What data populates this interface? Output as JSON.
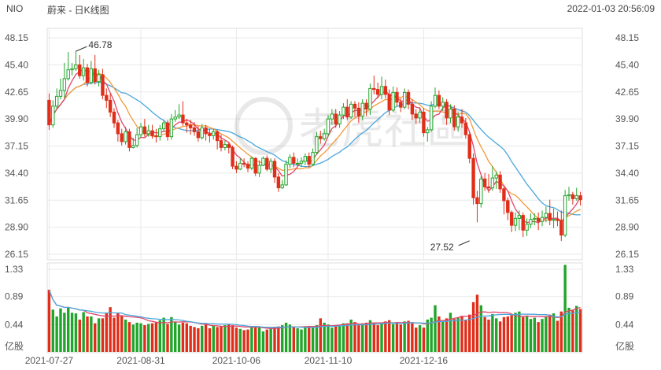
{
  "header": {
    "symbol": "NIO",
    "name": "蔚来 - 日K线图",
    "datetime": "2022-01-03 20:56:09"
  },
  "watermark": "老虎社區",
  "colors": {
    "up": "#22a52b",
    "down": "#e02e1a",
    "ma_red": "#e0456a",
    "ma_orange": "#f39a3a",
    "ma_blue": "#4aa7dd",
    "grid": "#e9e9e9",
    "axis_text": "#555555"
  },
  "chart_data": {
    "type": "candlestick",
    "price_axis": {
      "ticks": [
        "48.15",
        "45.40",
        "42.65",
        "39.90",
        "37.15",
        "34.40",
        "31.65",
        "28.90",
        "26.15"
      ],
      "range": [
        26.15,
        48.15
      ]
    },
    "volume_axis": {
      "ticks": [
        "1.33",
        "0.89",
        "0.44"
      ],
      "range": [
        0,
        1.33
      ],
      "unit": "亿股"
    },
    "x_labels": [
      "2021-07-27",
      "2021-08-31",
      "2021-10-06",
      "2021-11-10",
      "2021-12-16"
    ],
    "x_label_positions": [
      0,
      24,
      49,
      73,
      98
    ],
    "annotations": [
      {
        "text": "46.78",
        "index": 7,
        "value": 46.78,
        "kind": "high"
      },
      {
        "text": "27.52",
        "index": 110,
        "value": 27.52,
        "kind": "low"
      }
    ],
    "candles": [
      [
        41.8,
        39.3,
        42.5,
        38.8
      ],
      [
        39.3,
        41.2,
        41.8,
        39.0
      ],
      [
        41.2,
        42.2,
        43.0,
        40.9
      ],
      [
        42.2,
        42.8,
        44.0,
        41.9
      ],
      [
        42.8,
        44.0,
        45.6,
        42.0
      ],
      [
        44.0,
        44.9,
        46.7,
        43.8
      ],
      [
        44.9,
        45.0,
        45.6,
        44.3
      ],
      [
        45.0,
        45.4,
        46.8,
        44.8
      ],
      [
        45.4,
        44.3,
        46.4,
        44.0
      ],
      [
        44.3,
        45.1,
        46.0,
        43.8
      ],
      [
        45.1,
        43.6,
        45.5,
        43.2
      ],
      [
        43.6,
        45.0,
        45.8,
        43.4
      ],
      [
        45.0,
        43.7,
        46.4,
        43.4
      ],
      [
        43.7,
        44.4,
        44.9,
        43.2
      ],
      [
        44.4,
        42.3,
        45.0,
        41.9
      ],
      [
        42.3,
        41.8,
        43.0,
        41.0
      ],
      [
        41.8,
        40.6,
        42.5,
        40.1
      ],
      [
        40.6,
        39.5,
        41.0,
        39.0
      ],
      [
        39.5,
        38.4,
        39.8,
        37.6
      ],
      [
        38.4,
        37.6,
        38.9,
        37.2
      ],
      [
        37.6,
        38.6,
        39.1,
        37.3
      ],
      [
        38.6,
        37.0,
        38.9,
        36.6
      ],
      [
        37.0,
        37.2,
        38.0,
        36.9
      ],
      [
        37.2,
        38.3,
        39.0,
        37.0
      ],
      [
        38.3,
        39.1,
        39.5,
        38.0
      ],
      [
        39.1,
        38.4,
        39.9,
        38.1
      ],
      [
        38.4,
        38.7,
        39.3,
        38.1
      ],
      [
        38.7,
        38.2,
        39.3,
        37.9
      ],
      [
        38.2,
        38.1,
        38.9,
        37.5
      ],
      [
        38.1,
        38.9,
        39.3,
        37.7
      ],
      [
        38.9,
        39.5,
        39.8,
        38.6
      ],
      [
        39.5,
        38.1,
        39.8,
        37.7
      ],
      [
        38.1,
        39.9,
        40.4,
        37.8
      ],
      [
        39.9,
        40.1,
        40.8,
        39.6
      ],
      [
        40.1,
        40.3,
        41.4,
        39.9
      ],
      [
        40.3,
        39.5,
        41.7,
        39.2
      ],
      [
        39.5,
        39.3,
        39.9,
        38.5
      ],
      [
        39.3,
        39.0,
        39.8,
        38.3
      ],
      [
        39.0,
        38.6,
        39.6,
        38.2
      ],
      [
        38.6,
        38.0,
        39.2,
        37.6
      ],
      [
        38.0,
        39.0,
        39.4,
        37.8
      ],
      [
        39.0,
        38.4,
        39.3,
        37.7
      ],
      [
        38.4,
        38.2,
        38.9,
        37.5
      ],
      [
        38.2,
        38.6,
        38.9,
        37.8
      ],
      [
        38.6,
        37.7,
        38.8,
        36.8
      ],
      [
        37.7,
        37.0,
        38.3,
        36.6
      ],
      [
        37.0,
        37.3,
        37.7,
        36.7
      ],
      [
        37.3,
        37.0,
        37.5,
        36.4
      ],
      [
        37.0,
        35.1,
        37.2,
        34.8
      ],
      [
        35.1,
        34.8,
        35.6,
        34.4
      ],
      [
        34.8,
        35.4,
        35.9,
        34.7
      ],
      [
        35.4,
        35.3,
        35.9,
        35.0
      ],
      [
        35.3,
        34.9,
        35.6,
        34.5
      ],
      [
        34.9,
        35.9,
        36.1,
        34.7
      ],
      [
        35.9,
        34.4,
        36.0,
        34.1
      ],
      [
        34.4,
        35.2,
        35.7,
        34.0
      ],
      [
        35.2,
        35.9,
        36.1,
        35.1
      ],
      [
        35.9,
        34.8,
        36.2,
        34.6
      ],
      [
        34.8,
        35.6,
        35.9,
        34.4
      ],
      [
        35.6,
        34.0,
        35.9,
        33.4
      ],
      [
        34.0,
        32.9,
        34.4,
        32.5
      ],
      [
        32.9,
        33.2,
        33.7,
        32.8
      ],
      [
        33.2,
        35.3,
        35.7,
        33.1
      ],
      [
        35.3,
        36.0,
        36.3,
        34.9
      ],
      [
        36.0,
        35.4,
        36.5,
        35.0
      ],
      [
        35.4,
        35.4,
        35.9,
        35.1
      ],
      [
        35.4,
        35.6,
        36.0,
        35.0
      ],
      [
        35.6,
        36.1,
        36.4,
        35.2
      ],
      [
        36.1,
        35.3,
        36.5,
        35.0
      ],
      [
        35.3,
        36.5,
        36.9,
        35.1
      ],
      [
        36.5,
        38.1,
        38.6,
        36.3
      ],
      [
        38.1,
        37.9,
        38.7,
        37.4
      ],
      [
        37.9,
        38.4,
        38.9,
        37.7
      ],
      [
        38.4,
        39.9,
        40.3,
        38.1
      ],
      [
        39.9,
        40.4,
        40.9,
        39.3
      ],
      [
        40.4,
        39.4,
        40.9,
        39.0
      ],
      [
        39.4,
        40.3,
        40.7,
        39.0
      ],
      [
        40.3,
        41.1,
        41.5,
        39.9
      ],
      [
        41.1,
        40.1,
        41.9,
        39.8
      ],
      [
        40.1,
        41.4,
        41.7,
        39.9
      ],
      [
        41.4,
        41.0,
        41.7,
        40.1
      ],
      [
        41.0,
        40.2,
        41.6,
        39.5
      ],
      [
        40.2,
        41.5,
        41.9,
        39.8
      ],
      [
        41.5,
        40.9,
        41.9,
        40.2
      ],
      [
        40.9,
        43.0,
        43.5,
        40.3
      ],
      [
        43.0,
        42.9,
        44.3,
        42.4
      ],
      [
        42.9,
        42.4,
        43.6,
        42.0
      ],
      [
        42.4,
        43.2,
        44.2,
        41.9
      ],
      [
        43.2,
        42.4,
        43.9,
        42.0
      ],
      [
        42.4,
        40.8,
        42.9,
        40.3
      ],
      [
        40.8,
        42.6,
        43.2,
        40.6
      ],
      [
        42.6,
        41.6,
        43.1,
        41.2
      ],
      [
        41.6,
        41.1,
        42.0,
        40.6
      ],
      [
        41.1,
        42.6,
        43.0,
        40.9
      ],
      [
        42.6,
        41.4,
        42.9,
        40.9
      ],
      [
        41.4,
        40.4,
        41.9,
        39.8
      ],
      [
        40.4,
        40.0,
        40.9,
        39.4
      ],
      [
        40.0,
        40.6,
        41.1,
        39.5
      ],
      [
        40.6,
        38.5,
        41.0,
        38.1
      ],
      [
        38.5,
        38.8,
        39.1,
        37.6
      ],
      [
        38.8,
        41.2,
        41.7,
        38.6
      ],
      [
        41.2,
        42.3,
        43.1,
        41.0
      ],
      [
        42.3,
        41.2,
        42.8,
        40.9
      ],
      [
        41.2,
        41.6,
        42.1,
        40.7
      ],
      [
        41.6,
        40.0,
        41.9,
        39.3
      ],
      [
        40.0,
        40.9,
        41.4,
        39.5
      ],
      [
        40.9,
        39.1,
        41.3,
        38.7
      ],
      [
        39.1,
        40.1,
        40.6,
        38.6
      ],
      [
        40.1,
        39.5,
        40.9,
        39.0
      ],
      [
        39.5,
        38.3,
        40.0,
        37.9
      ],
      [
        38.3,
        35.9,
        38.6,
        35.4
      ],
      [
        35.9,
        31.9,
        36.4,
        31.2
      ],
      [
        31.9,
        31.3,
        32.6,
        29.4
      ],
      [
        31.3,
        33.8,
        34.1,
        30.9
      ],
      [
        33.8,
        33.0,
        34.4,
        32.6
      ],
      [
        33.0,
        32.9,
        34.3,
        32.4
      ],
      [
        32.9,
        33.9,
        35.1,
        32.6
      ],
      [
        33.9,
        34.2,
        34.6,
        32.8
      ],
      [
        34.2,
        32.8,
        34.6,
        32.4
      ],
      [
        32.8,
        31.6,
        33.0,
        30.2
      ],
      [
        31.6,
        30.4,
        31.9,
        29.6
      ],
      [
        30.4,
        29.1,
        30.6,
        28.4
      ],
      [
        29.1,
        29.8,
        30.4,
        28.5
      ],
      [
        29.8,
        30.1,
        30.6,
        28.6
      ],
      [
        30.1,
        28.6,
        30.4,
        27.9
      ],
      [
        28.6,
        29.2,
        29.8,
        28.0
      ],
      [
        29.2,
        29.7,
        30.3,
        28.8
      ],
      [
        29.7,
        29.8,
        30.3,
        29.1
      ],
      [
        29.8,
        29.5,
        30.4,
        28.6
      ],
      [
        29.5,
        29.9,
        30.6,
        29.0
      ],
      [
        29.9,
        30.3,
        31.0,
        29.4
      ],
      [
        30.3,
        29.6,
        31.7,
        29.1
      ],
      [
        29.6,
        29.7,
        30.8,
        28.8
      ],
      [
        29.7,
        29.6,
        30.5,
        29.0
      ],
      [
        29.6,
        28.1,
        30.6,
        27.5
      ],
      [
        28.1,
        32.1,
        32.7,
        27.9
      ],
      [
        32.1,
        32.2,
        33.0,
        31.6
      ],
      [
        32.2,
        31.8,
        32.5,
        31.2
      ],
      [
        31.8,
        32.1,
        32.9,
        31.6
      ],
      [
        32.1,
        31.7,
        32.5,
        31.1
      ]
    ],
    "volumes": [
      1.0,
      0.68,
      0.57,
      0.7,
      0.63,
      0.72,
      0.63,
      0.62,
      0.52,
      0.64,
      0.57,
      0.57,
      0.46,
      0.54,
      0.54,
      0.63,
      0.72,
      0.55,
      0.62,
      0.59,
      0.52,
      0.48,
      0.44,
      0.47,
      0.46,
      0.43,
      0.45,
      0.46,
      0.47,
      0.51,
      0.55,
      0.45,
      0.56,
      0.48,
      0.44,
      0.47,
      0.46,
      0.42,
      0.4,
      0.38,
      0.42,
      0.44,
      0.38,
      0.42,
      0.4,
      0.41,
      0.43,
      0.44,
      0.43,
      0.39,
      0.37,
      0.35,
      0.36,
      0.4,
      0.41,
      0.41,
      0.33,
      0.36,
      0.38,
      0.4,
      0.41,
      0.43,
      0.47,
      0.44,
      0.4,
      0.38,
      0.36,
      0.39,
      0.41,
      0.4,
      0.43,
      0.54,
      0.47,
      0.44,
      0.39,
      0.43,
      0.42,
      0.46,
      0.46,
      0.52,
      0.48,
      0.43,
      0.46,
      0.47,
      0.51,
      0.46,
      0.43,
      0.47,
      0.49,
      0.51,
      0.45,
      0.47,
      0.44,
      0.49,
      0.5,
      0.46,
      0.39,
      0.43,
      0.39,
      0.52,
      0.55,
      0.75,
      0.57,
      0.49,
      0.54,
      0.63,
      0.53,
      0.55,
      0.58,
      0.52,
      0.6,
      0.8,
      0.92,
      0.75,
      0.56,
      0.52,
      0.61,
      0.54,
      0.49,
      0.56,
      0.57,
      0.59,
      0.63,
      0.65,
      0.56,
      0.58,
      0.53,
      0.55,
      0.48,
      0.53,
      0.57,
      0.6,
      0.62,
      0.5,
      0.65,
      1.4,
      0.71,
      0.67,
      0.74,
      0.69
    ]
  },
  "labels": {
    "vol_unit_left": "亿股",
    "vol_unit_right": "亿股"
  }
}
